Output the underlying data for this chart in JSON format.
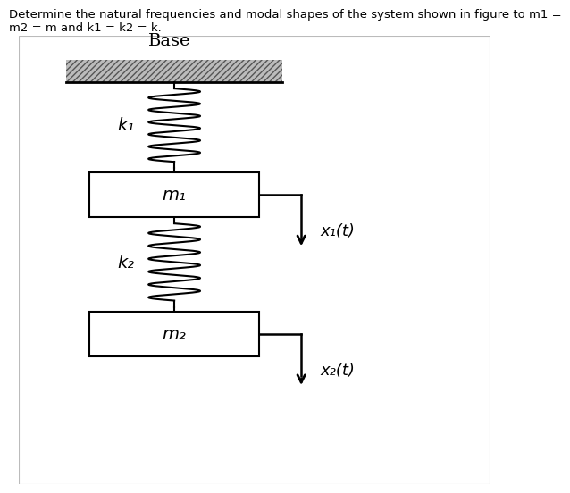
{
  "title_line1": "Determine the natural frequencies and modal shapes of the system shown in figure to m1 =",
  "title_line2": "m2 = m and k1 = k2 = k.",
  "title_fontsize": 9.5,
  "fig_width": 5.72,
  "fig_height": 5.52,
  "background_color": "#ffffff",
  "base_label": "Base",
  "k1_label": "k₁",
  "k2_label": "k₂",
  "m1_label": "m₁",
  "m2_label": "m₂",
  "x1_label": "x₁(t)",
  "x2_label": "x₂(t)"
}
